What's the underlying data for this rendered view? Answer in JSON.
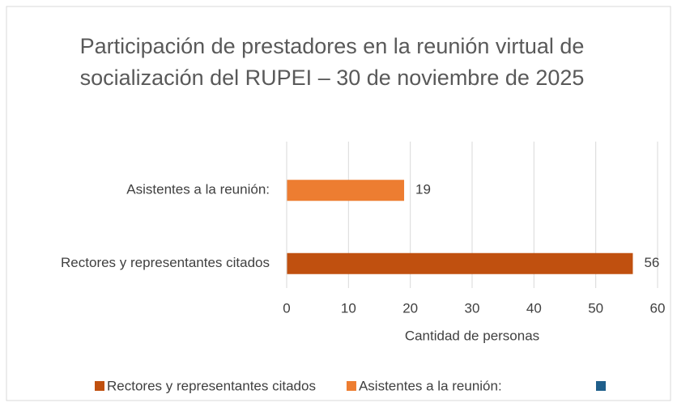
{
  "chart_data": {
    "type": "hbar",
    "title": "Participación de prestadores en la reunión virtual de socialización del RUPEI – 30 de noviembre de 2025",
    "categories": [
      "Rectores y representantes citados",
      "Asistentes a la reunión:"
    ],
    "values": [
      56,
      19
    ],
    "colors": [
      "#c0500f",
      "#ed7d31"
    ],
    "xlabel": "Cantidad de personas",
    "xlim": [
      0,
      60
    ],
    "xticks": [
      0,
      10,
      20,
      30,
      40,
      50,
      60
    ],
    "grid": true,
    "legend": "bottom"
  }
}
